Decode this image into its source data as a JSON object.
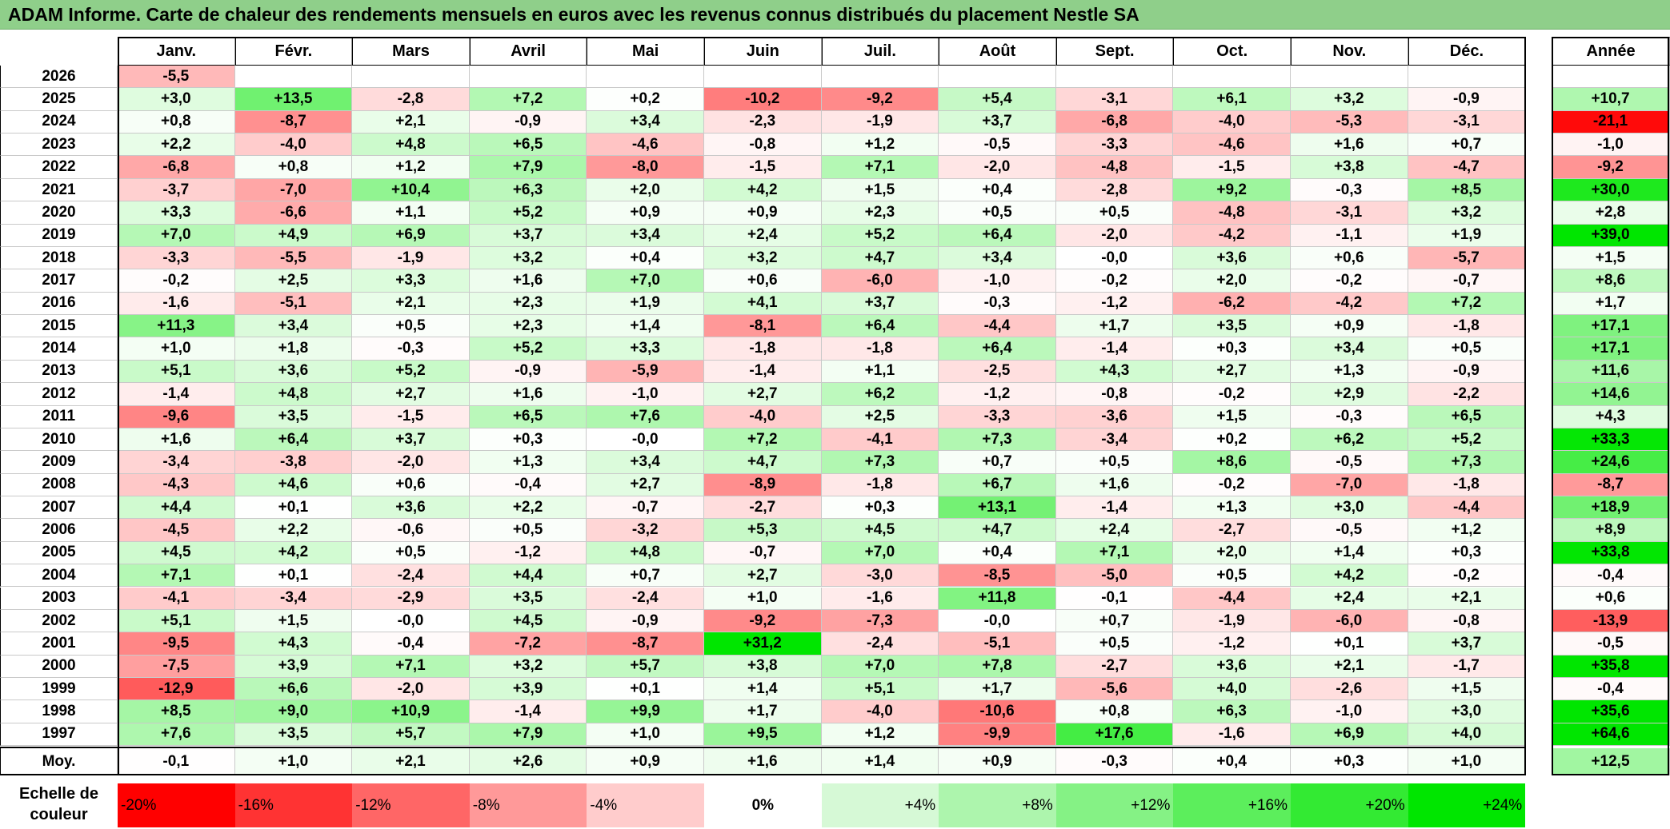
{
  "title": "ADAM Informe. Carte de chaleur des rendements mensuels en euros avec les revenus connus distribués du placement Nestle SA",
  "chart_data": {
    "type": "heatmap",
    "months": [
      "Janv.",
      "Févr.",
      "Mars",
      "Avril",
      "Mai",
      "Juin",
      "Juil.",
      "Août",
      "Sept.",
      "Oct.",
      "Nov.",
      "Déc."
    ],
    "year_label": "Année",
    "rows": [
      {
        "year": "2026",
        "values": [
          "-5,5",
          "",
          "",
          "",
          "",
          "",
          "",
          "",
          "",
          "",
          "",
          ""
        ],
        "annual": ""
      },
      {
        "year": "2025",
        "values": [
          "+3,0",
          "+13,5",
          "-2,8",
          "+7,2",
          "+0,2",
          "-10,2",
          "-9,2",
          "+5,4",
          "-3,1",
          "+6,1",
          "+3,2",
          "-0,9"
        ],
        "annual": "+10,7"
      },
      {
        "year": "2024",
        "values": [
          "+0,8",
          "-8,7",
          "+2,1",
          "-0,9",
          "+3,4",
          "-2,3",
          "-1,9",
          "+3,7",
          "-6,8",
          "-4,0",
          "-5,3",
          "-3,1"
        ],
        "annual": "-21,1"
      },
      {
        "year": "2023",
        "values": [
          "+2,2",
          "-4,0",
          "+4,8",
          "+6,5",
          "-4,6",
          "-0,8",
          "+1,2",
          "-0,5",
          "-3,3",
          "-4,6",
          "+1,6",
          "+0,7"
        ],
        "annual": "-1,0"
      },
      {
        "year": "2022",
        "values": [
          "-6,8",
          "+0,8",
          "+1,2",
          "+7,9",
          "-8,0",
          "-1,5",
          "+7,1",
          "-2,0",
          "-4,8",
          "-1,5",
          "+3,8",
          "-4,7"
        ],
        "annual": "-9,2"
      },
      {
        "year": "2021",
        "values": [
          "-3,7",
          "-7,0",
          "+10,4",
          "+6,3",
          "+2,0",
          "+4,2",
          "+1,5",
          "+0,4",
          "-2,8",
          "+9,2",
          "-0,3",
          "+8,5"
        ],
        "annual": "+30,0"
      },
      {
        "year": "2020",
        "values": [
          "+3,3",
          "-6,6",
          "+1,1",
          "+5,2",
          "+0,9",
          "+0,9",
          "+2,3",
          "+0,5",
          "+0,5",
          "-4,8",
          "-3,1",
          "+3,2"
        ],
        "annual": "+2,8"
      },
      {
        "year": "2019",
        "values": [
          "+7,0",
          "+4,9",
          "+6,9",
          "+3,7",
          "+3,4",
          "+2,4",
          "+5,2",
          "+6,4",
          "-2,0",
          "-4,2",
          "-1,1",
          "+1,9"
        ],
        "annual": "+39,0"
      },
      {
        "year": "2018",
        "values": [
          "-3,3",
          "-5,5",
          "-1,9",
          "+3,2",
          "+0,4",
          "+3,2",
          "+4,7",
          "+3,4",
          "-0,0",
          "+3,6",
          "+0,6",
          "-5,7"
        ],
        "annual": "+1,5"
      },
      {
        "year": "2017",
        "values": [
          "-0,2",
          "+2,5",
          "+3,3",
          "+1,6",
          "+7,0",
          "+0,6",
          "-6,0",
          "-1,0",
          "-0,2",
          "+2,0",
          "-0,2",
          "-0,7"
        ],
        "annual": "+8,6"
      },
      {
        "year": "2016",
        "values": [
          "-1,6",
          "-5,1",
          "+2,1",
          "+2,3",
          "+1,9",
          "+4,1",
          "+3,7",
          "-0,3",
          "-1,2",
          "-6,2",
          "-4,2",
          "+7,2"
        ],
        "annual": "+1,7"
      },
      {
        "year": "2015",
        "values": [
          "+11,3",
          "+3,4",
          "+0,5",
          "+2,3",
          "+1,4",
          "-8,1",
          "+6,4",
          "-4,4",
          "+1,7",
          "+3,5",
          "+0,9",
          "-1,8"
        ],
        "annual": "+17,1"
      },
      {
        "year": "2014",
        "values": [
          "+1,0",
          "+1,8",
          "-0,3",
          "+5,2",
          "+3,3",
          "-1,8",
          "-1,8",
          "+6,4",
          "-1,4",
          "+0,3",
          "+3,4",
          "+0,5"
        ],
        "annual": "+17,1"
      },
      {
        "year": "2013",
        "values": [
          "+5,1",
          "+3,6",
          "+5,2",
          "-0,9",
          "-5,9",
          "-1,4",
          "+1,1",
          "-2,5",
          "+4,3",
          "+2,7",
          "+1,3",
          "-0,9"
        ],
        "annual": "+11,6"
      },
      {
        "year": "2012",
        "values": [
          "-1,4",
          "+4,8",
          "+2,7",
          "+1,6",
          "-1,0",
          "+2,7",
          "+6,2",
          "-1,2",
          "-0,8",
          "-0,2",
          "+2,9",
          "-2,2"
        ],
        "annual": "+14,6"
      },
      {
        "year": "2011",
        "values": [
          "-9,6",
          "+3,5",
          "-1,5",
          "+6,5",
          "+7,6",
          "-4,0",
          "+2,5",
          "-3,3",
          "-3,6",
          "+1,5",
          "-0,3",
          "+6,5"
        ],
        "annual": "+4,3"
      },
      {
        "year": "2010",
        "values": [
          "+1,6",
          "+6,4",
          "+3,7",
          "+0,3",
          "-0,0",
          "+7,2",
          "-4,1",
          "+7,3",
          "-3,4",
          "+0,2",
          "+6,2",
          "+5,2"
        ],
        "annual": "+33,3"
      },
      {
        "year": "2009",
        "values": [
          "-3,4",
          "-3,8",
          "-2,0",
          "+1,3",
          "+3,4",
          "+4,7",
          "+7,3",
          "+0,7",
          "+0,5",
          "+8,6",
          "-0,5",
          "+7,3"
        ],
        "annual": "+24,6"
      },
      {
        "year": "2008",
        "values": [
          "-4,3",
          "+4,6",
          "+0,6",
          "-0,4",
          "+2,7",
          "-8,9",
          "-1,8",
          "+6,7",
          "+1,6",
          "-0,2",
          "-7,0",
          "-1,8"
        ],
        "annual": "-8,7"
      },
      {
        "year": "2007",
        "values": [
          "+4,4",
          "+0,1",
          "+3,6",
          "+2,2",
          "-0,7",
          "-2,7",
          "+0,3",
          "+13,1",
          "-1,4",
          "+1,3",
          "+3,0",
          "-4,4"
        ],
        "annual": "+18,9"
      },
      {
        "year": "2006",
        "values": [
          "-4,5",
          "+2,2",
          "-0,6",
          "+0,5",
          "-3,2",
          "+5,3",
          "+4,5",
          "+4,7",
          "+2,4",
          "-2,7",
          "-0,5",
          "+1,2"
        ],
        "annual": "+8,9"
      },
      {
        "year": "2005",
        "values": [
          "+4,5",
          "+4,2",
          "+0,5",
          "-1,2",
          "+4,8",
          "-0,7",
          "+7,0",
          "+0,4",
          "+7,1",
          "+2,0",
          "+1,4",
          "+0,3"
        ],
        "annual": "+33,8"
      },
      {
        "year": "2004",
        "values": [
          "+7,1",
          "+0,1",
          "-2,4",
          "+4,4",
          "+0,7",
          "+2,7",
          "-3,0",
          "-8,5",
          "-5,0",
          "+0,5",
          "+4,2",
          "-0,2"
        ],
        "annual": "-0,4"
      },
      {
        "year": "2003",
        "values": [
          "-4,1",
          "-3,4",
          "-2,9",
          "+3,5",
          "-2,4",
          "+1,0",
          "-1,6",
          "+11,8",
          "-0,1",
          "-4,4",
          "+2,4",
          "+2,1"
        ],
        "annual": "+0,6"
      },
      {
        "year": "2002",
        "values": [
          "+5,1",
          "+1,5",
          "-0,0",
          "+4,5",
          "-0,9",
          "-9,2",
          "-7,3",
          "-0,0",
          "+0,7",
          "-1,9",
          "-6,0",
          "-0,8"
        ],
        "annual": "-13,9"
      },
      {
        "year": "2001",
        "values": [
          "-9,5",
          "+4,3",
          "-0,4",
          "-7,2",
          "-8,7",
          "+31,2",
          "-2,4",
          "-5,1",
          "+0,5",
          "-1,2",
          "+0,1",
          "+3,7"
        ],
        "annual": "-0,5"
      },
      {
        "year": "2000",
        "values": [
          "-7,5",
          "+3,9",
          "+7,1",
          "+3,2",
          "+5,7",
          "+3,8",
          "+7,0",
          "+7,8",
          "-2,7",
          "+3,6",
          "+2,1",
          "-1,7"
        ],
        "annual": "+35,8"
      },
      {
        "year": "1999",
        "values": [
          "-12,9",
          "+6,6",
          "-2,0",
          "+3,9",
          "+0,1",
          "+1,4",
          "+5,1",
          "+1,7",
          "-5,6",
          "+4,0",
          "-2,6",
          "+1,5"
        ],
        "annual": "-0,4"
      },
      {
        "year": "1998",
        "values": [
          "+8,5",
          "+9,0",
          "+10,9",
          "-1,4",
          "+9,9",
          "+1,7",
          "-4,0",
          "-10,6",
          "+0,8",
          "+6,3",
          "-1,0",
          "+3,0"
        ],
        "annual": "+35,6"
      },
      {
        "year": "1997",
        "values": [
          "+7,6",
          "+3,5",
          "+5,7",
          "+7,9",
          "+1,0",
          "+9,5",
          "+1,2",
          "-9,9",
          "+17,6",
          "-1,6",
          "+6,9",
          "+4,0"
        ],
        "annual": "+64,6"
      }
    ],
    "average": {
      "label": "Moy.",
      "values": [
        "-0,1",
        "+1,0",
        "+2,1",
        "+2,6",
        "+0,9",
        "+1,6",
        "+1,4",
        "+0,9",
        "-0,3",
        "+0,4",
        "+0,3",
        "+1,0"
      ],
      "annual": "+12,5"
    },
    "legend": {
      "label": "Echelle de couleur",
      "steps": [
        {
          "label": "-20%",
          "color": "#ff0000"
        },
        {
          "label": "-16%",
          "color": "#ff3333"
        },
        {
          "label": "-12%",
          "color": "#ff6666"
        },
        {
          "label": "-8%",
          "color": "#ff9999"
        },
        {
          "label": "-4%",
          "color": "#ffcccc"
        },
        {
          "label": "0%",
          "color": "#ffffff"
        },
        {
          "label": "+4%",
          "color": "#d6f9d6"
        },
        {
          "label": "+8%",
          "color": "#adf5ad"
        },
        {
          "label": "+12%",
          "color": "#85f285"
        },
        {
          "label": "+16%",
          "color": "#5cee5c"
        },
        {
          "label": "+20%",
          "color": "#33ea33"
        },
        {
          "label": "+24%",
          "color": "#00e600"
        }
      ]
    }
  }
}
